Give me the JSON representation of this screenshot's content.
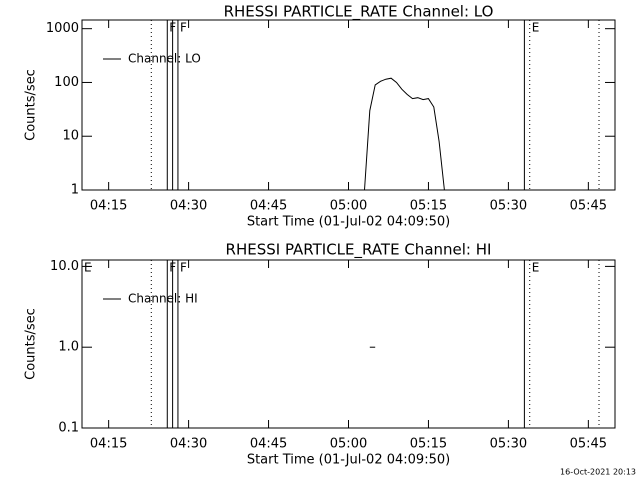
{
  "chart_data": [
    {
      "type": "line",
      "title": "RHESSI PARTICLE_RATE Channel: LO",
      "x_label": "Start Time (01-Jul-02 04:09:50)",
      "y_label": "Counts/sec",
      "log_scale": true,
      "legend": "upper left",
      "color": "#000000",
      "xlim": [
        "04:10",
        "05:50"
      ],
      "xticks": [
        "04:15",
        "04:30",
        "04:45",
        "05:00",
        "05:15",
        "05:30",
        "05:45"
      ],
      "ylim": [
        1,
        1450
      ],
      "yticks": [
        1,
        10,
        100,
        1000
      ],
      "series": [
        {
          "name": "Channel: LO",
          "color": "#000000",
          "x": [
            "05:03",
            "05:04",
            "05:05",
            "05:06",
            "05:07",
            "05:08",
            "05:09",
            "05:10",
            "05:11",
            "05:12",
            "05:13",
            "05:14",
            "05:15",
            "05:16",
            "05:17",
            "05:18"
          ],
          "values": [
            1,
            30,
            90,
            105,
            115,
            120,
            100,
            75,
            60,
            50,
            52,
            48,
            50,
            35,
            8,
            1
          ]
        }
      ],
      "markers": [
        {
          "x": "04:23",
          "style": "dotted"
        },
        {
          "x": "04:26",
          "style": "solid",
          "label": "F"
        },
        {
          "x": "04:27",
          "style": "solid"
        },
        {
          "x": "04:28",
          "style": "solid",
          "label": "F"
        },
        {
          "x": "05:33",
          "style": "solid"
        },
        {
          "x": "05:34",
          "style": "dotted",
          "label": "E"
        },
        {
          "x": "05:47",
          "style": "dotted"
        }
      ]
    },
    {
      "type": "line",
      "title": "RHESSI PARTICLE_RATE Channel: HI",
      "x_label": "Start Time (01-Jul-02 04:09:50)",
      "y_label": "Counts/sec",
      "log_scale": true,
      "legend": "upper left",
      "color": "#000000",
      "xlim": [
        "04:10",
        "05:50"
      ],
      "xticks": [
        "04:15",
        "04:30",
        "04:45",
        "05:00",
        "05:15",
        "05:30",
        "05:45"
      ],
      "ylim": [
        0.1,
        12
      ],
      "yticks": [
        {
          "value": 0.1,
          "label": "0.1"
        },
        {
          "value": 1,
          "label": "1.0"
        },
        {
          "value": 10,
          "label": "10.0"
        }
      ],
      "series": [
        {
          "name": "Channel: HI",
          "color": "#000000",
          "x": [
            "05:04",
            "05:05"
          ],
          "values": [
            1,
            1
          ]
        }
      ],
      "markers": [
        {
          "x": "04:10",
          "style": "none",
          "label": "E"
        },
        {
          "x": "04:23",
          "style": "dotted"
        },
        {
          "x": "04:26",
          "style": "solid",
          "label": "F"
        },
        {
          "x": "04:27",
          "style": "solid"
        },
        {
          "x": "04:28",
          "style": "solid",
          "label": "F"
        },
        {
          "x": "05:33",
          "style": "solid"
        },
        {
          "x": "05:34",
          "style": "dotted",
          "label": "E"
        },
        {
          "x": "05:47",
          "style": "dotted"
        }
      ]
    }
  ],
  "footer": "16-Oct-2021 20:13"
}
